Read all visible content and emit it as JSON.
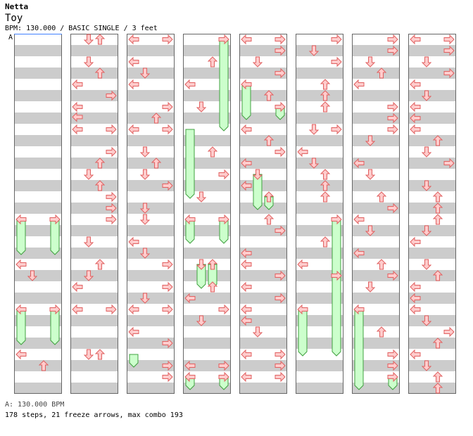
{
  "header": {
    "artist": "Netta",
    "title": "Toy",
    "info": "BPM: 130.000 / BASIC SINGLE / 3 feet",
    "section_marker": "A"
  },
  "footer": {
    "bpm_line": "A: 130.000 BPM",
    "stats": "178 steps, 21 freeze arrows, max combo 193"
  },
  "colors": {
    "stripe_gray": "#cccccc",
    "arrow_fill": "#ffcccc",
    "arrow_stroke": "#e06060",
    "freeze_fill": "#ccffcc",
    "freeze_stroke": "#40a040",
    "cursor_blue": "#4080ff"
  },
  "chart_data": {
    "type": "step_chart",
    "lanes": [
      "left",
      "down",
      "up",
      "right"
    ],
    "columns": 8,
    "measures_per_column": 8,
    "notes": [
      {
        "c": 0,
        "r": 16,
        "l": 0
      },
      {
        "c": 0,
        "r": 16,
        "l": 3
      },
      {
        "c": 0,
        "r": 20,
        "l": 0
      },
      {
        "c": 0,
        "r": 21,
        "l": 1
      },
      {
        "c": 0,
        "r": 24,
        "l": 0
      },
      {
        "c": 0,
        "r": 24,
        "l": 3
      },
      {
        "c": 0,
        "r": 28,
        "l": 0
      },
      {
        "c": 0,
        "r": 29,
        "l": 2
      },
      {
        "c": 1,
        "r": 0,
        "l": 1
      },
      {
        "c": 1,
        "r": 0,
        "l": 2
      },
      {
        "c": 1,
        "r": 2,
        "l": 1
      },
      {
        "c": 1,
        "r": 3,
        "l": 2
      },
      {
        "c": 1,
        "r": 4,
        "l": 0
      },
      {
        "c": 1,
        "r": 5,
        "l": 3
      },
      {
        "c": 1,
        "r": 6,
        "l": 0
      },
      {
        "c": 1,
        "r": 6.9,
        "l": 0
      },
      {
        "c": 1,
        "r": 8,
        "l": 0
      },
      {
        "c": 1,
        "r": 8,
        "l": 3
      },
      {
        "c": 1,
        "r": 10,
        "l": 3
      },
      {
        "c": 1,
        "r": 11,
        "l": 2
      },
      {
        "c": 1,
        "r": 12,
        "l": 1
      },
      {
        "c": 1,
        "r": 13,
        "l": 2
      },
      {
        "c": 1,
        "r": 14,
        "l": 3
      },
      {
        "c": 1,
        "r": 15,
        "l": 3
      },
      {
        "c": 1,
        "r": 16,
        "l": 3
      },
      {
        "c": 1,
        "r": 18,
        "l": 1
      },
      {
        "c": 1,
        "r": 20,
        "l": 2
      },
      {
        "c": 1,
        "r": 21,
        "l": 1
      },
      {
        "c": 1,
        "r": 22,
        "l": 0
      },
      {
        "c": 1,
        "r": 24,
        "l": 0
      },
      {
        "c": 1,
        "r": 24,
        "l": 3
      },
      {
        "c": 1,
        "r": 28,
        "l": 1
      },
      {
        "c": 1,
        "r": 28,
        "l": 2
      },
      {
        "c": 2,
        "r": 0,
        "l": 0
      },
      {
        "c": 2,
        "r": 0,
        "l": 3
      },
      {
        "c": 2,
        "r": 2,
        "l": 0
      },
      {
        "c": 2,
        "r": 3,
        "l": 1
      },
      {
        "c": 2,
        "r": 4,
        "l": 0
      },
      {
        "c": 2,
        "r": 6,
        "l": 3
      },
      {
        "c": 2,
        "r": 7,
        "l": 2
      },
      {
        "c": 2,
        "r": 8,
        "l": 0
      },
      {
        "c": 2,
        "r": 8,
        "l": 3
      },
      {
        "c": 2,
        "r": 10,
        "l": 1
      },
      {
        "c": 2,
        "r": 11,
        "l": 2
      },
      {
        "c": 2,
        "r": 12,
        "l": 1
      },
      {
        "c": 2,
        "r": 13,
        "l": 3
      },
      {
        "c": 2,
        "r": 15,
        "l": 1
      },
      {
        "c": 2,
        "r": 16,
        "l": 1
      },
      {
        "c": 2,
        "r": 18,
        "l": 0
      },
      {
        "c": 2,
        "r": 19,
        "l": 1
      },
      {
        "c": 2,
        "r": 20,
        "l": 3
      },
      {
        "c": 2,
        "r": 22,
        "l": 3
      },
      {
        "c": 2,
        "r": 23,
        "l": 1
      },
      {
        "c": 2,
        "r": 24,
        "l": 0
      },
      {
        "c": 2,
        "r": 24,
        "l": 3
      },
      {
        "c": 2,
        "r": 26,
        "l": 0
      },
      {
        "c": 2,
        "r": 27,
        "l": 3
      },
      {
        "c": 2,
        "r": 29,
        "l": 3
      },
      {
        "c": 2,
        "r": 30,
        "l": 3
      },
      {
        "c": 3,
        "r": 0,
        "l": 3
      },
      {
        "c": 3,
        "r": 2,
        "l": 2
      },
      {
        "c": 3,
        "r": 4,
        "l": 0
      },
      {
        "c": 3,
        "r": 6,
        "l": 1
      },
      {
        "c": 3,
        "r": 10,
        "l": 2
      },
      {
        "c": 3,
        "r": 12,
        "l": 3
      },
      {
        "c": 3,
        "r": 14,
        "l": 1
      },
      {
        "c": 3,
        "r": 16,
        "l": 0
      },
      {
        "c": 3,
        "r": 16,
        "l": 3
      },
      {
        "c": 3,
        "r": 20,
        "l": 1
      },
      {
        "c": 3,
        "r": 20,
        "l": 2
      },
      {
        "c": 3,
        "r": 22,
        "l": 2
      },
      {
        "c": 3,
        "r": 23,
        "l": 0
      },
      {
        "c": 3,
        "r": 24,
        "l": 3
      },
      {
        "c": 3,
        "r": 25,
        "l": 1
      },
      {
        "c": 3,
        "r": 29,
        "l": 0
      },
      {
        "c": 3,
        "r": 29,
        "l": 3
      },
      {
        "c": 3,
        "r": 30,
        "l": 0
      },
      {
        "c": 3,
        "r": 30,
        "l": 3
      },
      {
        "c": 4,
        "r": 0,
        "l": 0
      },
      {
        "c": 4,
        "r": 0,
        "l": 3
      },
      {
        "c": 4,
        "r": 1,
        "l": 3
      },
      {
        "c": 4,
        "r": 2,
        "l": 1
      },
      {
        "c": 4,
        "r": 3,
        "l": 3
      },
      {
        "c": 4,
        "r": 4,
        "l": 0
      },
      {
        "c": 4,
        "r": 5,
        "l": 2
      },
      {
        "c": 4,
        "r": 6,
        "l": 3
      },
      {
        "c": 4,
        "r": 8,
        "l": 0
      },
      {
        "c": 4,
        "r": 9,
        "l": 2
      },
      {
        "c": 4,
        "r": 10,
        "l": 3
      },
      {
        "c": 4,
        "r": 11,
        "l": 0
      },
      {
        "c": 4,
        "r": 12,
        "l": 1
      },
      {
        "c": 4,
        "r": 13,
        "l": 0
      },
      {
        "c": 4,
        "r": 14,
        "l": 2
      },
      {
        "c": 4,
        "r": 16,
        "l": 2
      },
      {
        "c": 4,
        "r": 17,
        "l": 3
      },
      {
        "c": 4,
        "r": 19,
        "l": 0
      },
      {
        "c": 4,
        "r": 20,
        "l": 0
      },
      {
        "c": 4,
        "r": 21,
        "l": 3
      },
      {
        "c": 4,
        "r": 22,
        "l": 0
      },
      {
        "c": 4,
        "r": 23,
        "l": 3
      },
      {
        "c": 4,
        "r": 24,
        "l": 0
      },
      {
        "c": 4,
        "r": 25,
        "l": 0
      },
      {
        "c": 4,
        "r": 26,
        "l": 1
      },
      {
        "c": 4,
        "r": 28,
        "l": 0
      },
      {
        "c": 4,
        "r": 28,
        "l": 3
      },
      {
        "c": 4,
        "r": 29,
        "l": 3
      },
      {
        "c": 4,
        "r": 30,
        "l": 0
      },
      {
        "c": 4,
        "r": 30,
        "l": 3
      },
      {
        "c": 5,
        "r": 0,
        "l": 3
      },
      {
        "c": 5,
        "r": 1,
        "l": 1
      },
      {
        "c": 5,
        "r": 2,
        "l": 3
      },
      {
        "c": 5,
        "r": 4,
        "l": 2
      },
      {
        "c": 5,
        "r": 5,
        "l": 2
      },
      {
        "c": 5,
        "r": 6,
        "l": 2
      },
      {
        "c": 5,
        "r": 8,
        "l": 1
      },
      {
        "c": 5,
        "r": 8,
        "l": 3
      },
      {
        "c": 5,
        "r": 10,
        "l": 0
      },
      {
        "c": 5,
        "r": 11,
        "l": 1
      },
      {
        "c": 5,
        "r": 12,
        "l": 2
      },
      {
        "c": 5,
        "r": 13,
        "l": 2
      },
      {
        "c": 5,
        "r": 14,
        "l": 2
      },
      {
        "c": 5,
        "r": 16,
        "l": 3
      },
      {
        "c": 5,
        "r": 18,
        "l": 2
      },
      {
        "c": 5,
        "r": 20,
        "l": 0
      },
      {
        "c": 5,
        "r": 21,
        "l": 3
      },
      {
        "c": 5,
        "r": 24,
        "l": 0
      },
      {
        "c": 6,
        "r": 0,
        "l": 3
      },
      {
        "c": 6,
        "r": 1,
        "l": 3
      },
      {
        "c": 6,
        "r": 2,
        "l": 1
      },
      {
        "c": 6,
        "r": 3,
        "l": 2
      },
      {
        "c": 6,
        "r": 4,
        "l": 0
      },
      {
        "c": 6,
        "r": 6,
        "l": 3
      },
      {
        "c": 6,
        "r": 7,
        "l": 3
      },
      {
        "c": 6,
        "r": 8,
        "l": 3
      },
      {
        "c": 6,
        "r": 9,
        "l": 1
      },
      {
        "c": 6,
        "r": 11,
        "l": 0
      },
      {
        "c": 6,
        "r": 12,
        "l": 1
      },
      {
        "c": 6,
        "r": 14,
        "l": 2
      },
      {
        "c": 6,
        "r": 15,
        "l": 3
      },
      {
        "c": 6,
        "r": 16,
        "l": 0
      },
      {
        "c": 6,
        "r": 17,
        "l": 1
      },
      {
        "c": 6,
        "r": 19,
        "l": 0
      },
      {
        "c": 6,
        "r": 20,
        "l": 2
      },
      {
        "c": 6,
        "r": 21,
        "l": 3
      },
      {
        "c": 6,
        "r": 22,
        "l": 1
      },
      {
        "c": 6,
        "r": 24,
        "l": 0
      },
      {
        "c": 6,
        "r": 26,
        "l": 2
      },
      {
        "c": 6,
        "r": 28,
        "l": 3
      },
      {
        "c": 6,
        "r": 29,
        "l": 3
      },
      {
        "c": 6,
        "r": 30,
        "l": 3
      },
      {
        "c": 7,
        "r": 0,
        "l": 0
      },
      {
        "c": 7,
        "r": 0,
        "l": 3
      },
      {
        "c": 7,
        "r": 1,
        "l": 3
      },
      {
        "c": 7,
        "r": 2,
        "l": 1
      },
      {
        "c": 7,
        "r": 3,
        "l": 3
      },
      {
        "c": 7,
        "r": 4,
        "l": 0
      },
      {
        "c": 7,
        "r": 5,
        "l": 1
      },
      {
        "c": 7,
        "r": 6,
        "l": 0
      },
      {
        "c": 7,
        "r": 7,
        "l": 0
      },
      {
        "c": 7,
        "r": 8,
        "l": 0
      },
      {
        "c": 7,
        "r": 9,
        "l": 2
      },
      {
        "c": 7,
        "r": 10,
        "l": 1
      },
      {
        "c": 7,
        "r": 11,
        "l": 3
      },
      {
        "c": 7,
        "r": 13,
        "l": 1
      },
      {
        "c": 7,
        "r": 14,
        "l": 2
      },
      {
        "c": 7,
        "r": 15,
        "l": 2
      },
      {
        "c": 7,
        "r": 16,
        "l": 2
      },
      {
        "c": 7,
        "r": 17,
        "l": 1
      },
      {
        "c": 7,
        "r": 18,
        "l": 0
      },
      {
        "c": 7,
        "r": 20,
        "l": 1
      },
      {
        "c": 7,
        "r": 21,
        "l": 2
      },
      {
        "c": 7,
        "r": 22,
        "l": 0
      },
      {
        "c": 7,
        "r": 23,
        "l": 0
      },
      {
        "c": 7,
        "r": 24,
        "l": 0
      },
      {
        "c": 7,
        "r": 25,
        "l": 1
      },
      {
        "c": 7,
        "r": 26,
        "l": 3
      },
      {
        "c": 7,
        "r": 27,
        "l": 2
      },
      {
        "c": 7,
        "r": 28,
        "l": 0
      },
      {
        "c": 7,
        "r": 29,
        "l": 1
      },
      {
        "c": 7,
        "r": 30,
        "l": 2
      },
      {
        "c": 7,
        "r": 31,
        "l": 2
      }
    ],
    "freezes": [
      {
        "c": 0,
        "l": 0,
        "start": 16,
        "end": 19.5
      },
      {
        "c": 0,
        "l": 3,
        "start": 16,
        "end": 19.5
      },
      {
        "c": 0,
        "l": 0,
        "start": 24,
        "end": 27.5
      },
      {
        "c": 0,
        "l": 3,
        "start": 24,
        "end": 27.5
      },
      {
        "c": 2,
        "l": 0,
        "start": 28,
        "end": 29.5
      },
      {
        "c": 3,
        "l": 3,
        "start": 0,
        "end": 8.5
      },
      {
        "c": 3,
        "l": 0,
        "start": 8,
        "end": 14.5
      },
      {
        "c": 3,
        "l": 0,
        "start": 16,
        "end": 18.5
      },
      {
        "c": 3,
        "l": 3,
        "start": 16,
        "end": 18.5
      },
      {
        "c": 3,
        "l": 1,
        "start": 20,
        "end": 22.5
      },
      {
        "c": 3,
        "l": 2,
        "start": 20,
        "end": 22.5
      },
      {
        "c": 3,
        "l": 0,
        "start": 30,
        "end": 31.5
      },
      {
        "c": 3,
        "l": 3,
        "start": 30,
        "end": 31.5
      },
      {
        "c": 4,
        "l": 0,
        "start": 4,
        "end": 7.5
      },
      {
        "c": 4,
        "l": 3,
        "start": 6,
        "end": 7.5
      },
      {
        "c": 4,
        "l": 1,
        "start": 12,
        "end": 15.5
      },
      {
        "c": 4,
        "l": 2,
        "start": 14,
        "end": 15.5
      },
      {
        "c": 5,
        "l": 0,
        "start": 24,
        "end": 28.5
      },
      {
        "c": 5,
        "l": 3,
        "start": 16,
        "end": 28.5
      },
      {
        "c": 6,
        "l": 0,
        "start": 24,
        "end": 31.5
      },
      {
        "c": 6,
        "l": 3,
        "start": 30,
        "end": 31.5
      }
    ]
  }
}
